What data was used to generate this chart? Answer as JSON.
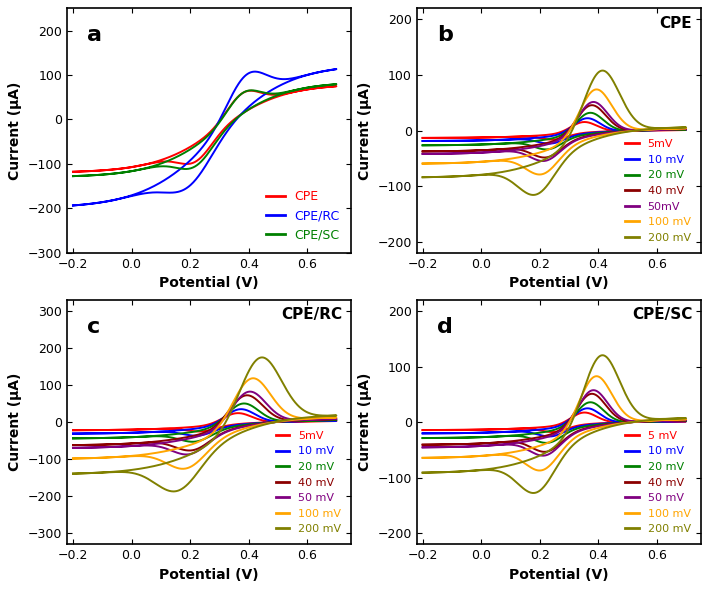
{
  "panel_a": {
    "label": "a",
    "ylim": [
      -300,
      250
    ],
    "yticks": [
      -300,
      -200,
      -100,
      0,
      100,
      200
    ],
    "xlim": [
      -0.22,
      0.75
    ],
    "xticks": [
      -0.2,
      0.0,
      0.2,
      0.4,
      0.6
    ],
    "legend": [
      "CPE",
      "CPE/RC",
      "CPE/SC"
    ],
    "legend_colors": [
      "#FF0000",
      "#0000FF",
      "#008000"
    ]
  },
  "panel_b": {
    "label": "b",
    "title": "CPE",
    "ylim": [
      -220,
      220
    ],
    "yticks": [
      -200,
      -100,
      0,
      100,
      200
    ],
    "xlim": [
      -0.22,
      0.75
    ],
    "xticks": [
      -0.2,
      0.0,
      0.2,
      0.4,
      0.6
    ],
    "legend": [
      "5mV",
      "10 mV",
      "20 mV",
      "40 mV",
      "50mV",
      "100 mV",
      "200 mV"
    ],
    "legend_colors": [
      "#FF0000",
      "#0000FF",
      "#008000",
      "#8B0000",
      "#800080",
      "#FFA500",
      "#808000"
    ]
  },
  "panel_c": {
    "label": "c",
    "title": "CPE/RC",
    "ylim": [
      -330,
      330
    ],
    "yticks": [
      -300,
      -200,
      -100,
      0,
      100,
      200,
      300
    ],
    "xlim": [
      -0.22,
      0.75
    ],
    "xticks": [
      -0.2,
      0.0,
      0.2,
      0.4,
      0.6
    ],
    "legend": [
      "5mV",
      "10 mV",
      "20 mV",
      "40 mV",
      "50 mV",
      "100 mV",
      "200 mV"
    ],
    "legend_colors": [
      "#FF0000",
      "#0000FF",
      "#008000",
      "#8B0000",
      "#800080",
      "#FFA500",
      "#808000"
    ]
  },
  "panel_d": {
    "label": "d",
    "title": "CPE/SC",
    "ylim": [
      -220,
      220
    ],
    "yticks": [
      -200,
      -100,
      0,
      100,
      200
    ],
    "xlim": [
      -0.22,
      0.75
    ],
    "xticks": [
      -0.2,
      0.0,
      0.2,
      0.4,
      0.6
    ],
    "legend": [
      "5 mV",
      "10 mV",
      "20 mV",
      "40 mV",
      "50 mV",
      "100 mV",
      "200 mV"
    ],
    "legend_colors": [
      "#FF0000",
      "#0000FF",
      "#008000",
      "#8B0000",
      "#800080",
      "#FFA500",
      "#808000"
    ]
  },
  "xlabel": "Potential (V)",
  "ylabel": "Current (μA)"
}
